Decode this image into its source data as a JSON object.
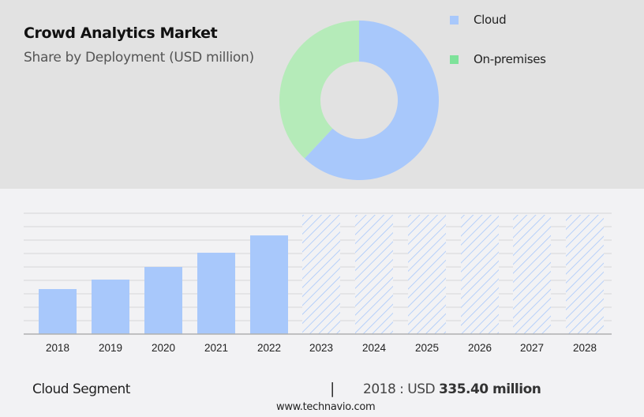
{
  "header": {
    "title": "Crowd Analytics Market",
    "subtitle": "Share by Deployment (USD million)"
  },
  "legend": [
    {
      "label": "Cloud",
      "color": "#a8c8fb"
    },
    {
      "label": "On-premises",
      "color": "#7ee29a"
    }
  ],
  "footer": {
    "segment": "Cloud Segment",
    "separator": "|",
    "value_prefix": "2018 : USD",
    "value": "335.40 million",
    "url": "www.technavio.com"
  },
  "colors": {
    "cloud": "#a8c8fb",
    "cloud_slice": "#a8c8fb",
    "onprem_slice": "#b5ebb9",
    "top_bg": "#e2e2e2",
    "bottom_bg": "#f2f2f4",
    "grid": "#d6d6d8",
    "axis": "#b0b0b0"
  },
  "chart_data": [
    {
      "type": "pie",
      "subtype": "donut",
      "title": "Crowd Analytics Market",
      "subtitle": "Share by Deployment (USD million)",
      "categories": [
        "Cloud",
        "On-premises"
      ],
      "values": [
        62,
        38
      ],
      "unit": "percent (estimated)",
      "legend_position": "right"
    },
    {
      "type": "bar",
      "series_name": "Cloud Segment",
      "categories": [
        "2018",
        "2019",
        "2020",
        "2021",
        "2022",
        "2023",
        "2024",
        "2025",
        "2026",
        "2027",
        "2028"
      ],
      "values": [
        335.4,
        406,
        500,
        606,
        735,
        null,
        null,
        null,
        null,
        null,
        null
      ],
      "forecast_years": [
        "2023",
        "2024",
        "2025",
        "2026",
        "2027",
        "2028"
      ],
      "forecast_style": "hatched placeholder (values not shown)",
      "xlabel": "",
      "ylabel": "USD million",
      "y_tick_labels_shown": false,
      "grid": true,
      "annotation": "2018 : USD 335.40 million"
    }
  ]
}
